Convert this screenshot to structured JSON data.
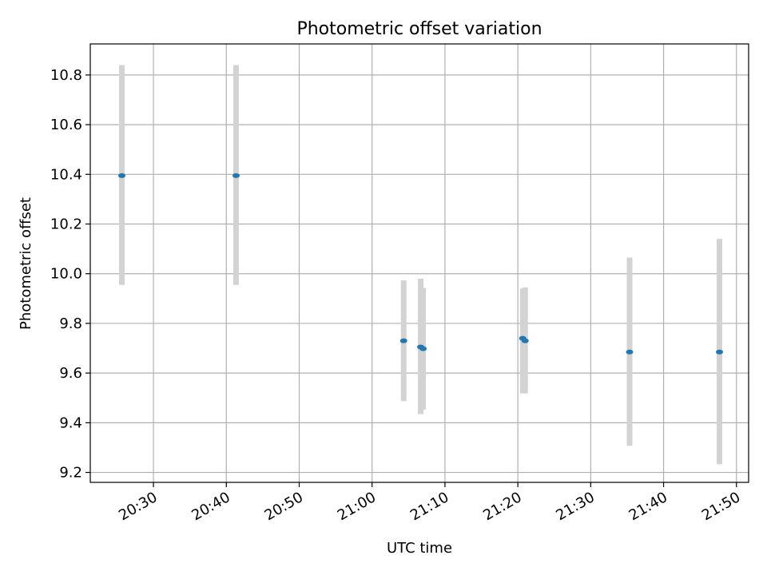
{
  "chart_data": {
    "type": "scatter",
    "title": "Photometric offset variation",
    "xlabel": "UTC time",
    "ylabel": "Photometric offset",
    "x_ticks": [
      "20:30",
      "20:40",
      "20:50",
      "21:00",
      "21:10",
      "21:20",
      "21:30",
      "21:40",
      "21:50"
    ],
    "xlim": [
      "20:21:20",
      "21:51:40"
    ],
    "y_ticks": [
      "9.2",
      "9.4",
      "9.6",
      "9.8",
      "10.0",
      "10.2",
      "10.4",
      "10.6",
      "10.8"
    ],
    "ylim": [
      9.16,
      10.925
    ],
    "grid": true,
    "points": [
      {
        "x": "20:25:40",
        "y": 10.395,
        "err_low": 9.955,
        "err_high": 10.84
      },
      {
        "x": "20:41:20",
        "y": 10.395,
        "err_low": 9.955,
        "err_high": 10.84
      },
      {
        "x": "21:04:20",
        "y": 9.73,
        "err_low": 9.487,
        "err_high": 9.973
      },
      {
        "x": "21:06:40",
        "y": 9.705,
        "err_low": 9.435,
        "err_high": 9.98
      },
      {
        "x": "21:07:00",
        "y": 9.698,
        "err_low": 9.453,
        "err_high": 9.943
      },
      {
        "x": "21:20:40",
        "y": 9.74,
        "err_low": 9.518,
        "err_high": 9.94
      },
      {
        "x": "21:21:00",
        "y": 9.73,
        "err_low": 9.518,
        "err_high": 9.945
      },
      {
        "x": "21:35:20",
        "y": 9.685,
        "err_low": 9.307,
        "err_high": 10.065
      },
      {
        "x": "21:47:40",
        "y": 9.685,
        "err_low": 9.233,
        "err_high": 10.14
      }
    ],
    "colors": {
      "points": "#1f77b4",
      "errorbars": "#d3d3d3",
      "grid": "#b0b0b0",
      "axes": "#000000"
    }
  }
}
